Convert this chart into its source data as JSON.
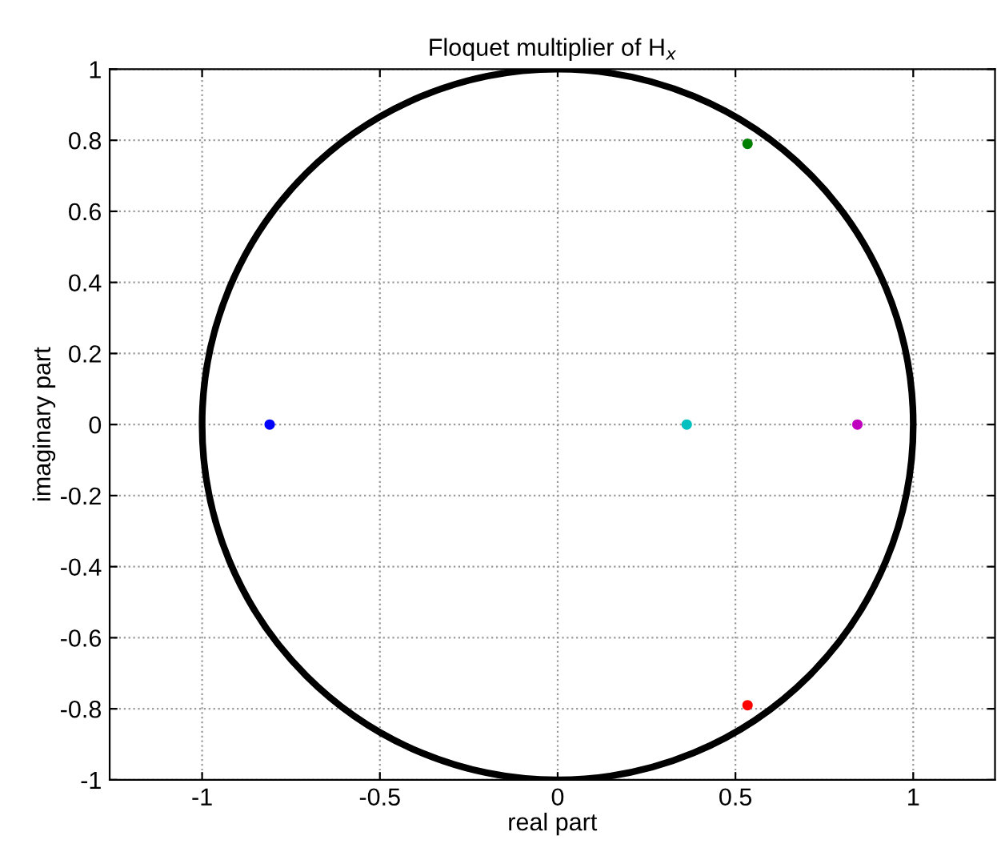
{
  "chart_data": {
    "type": "scatter",
    "title": "Floquet multiplier of H$_{x}$",
    "xlabel": "real part",
    "ylabel": "imaginary part",
    "xlim": [
      -1.26,
      1.23
    ],
    "ylim": [
      -1,
      1
    ],
    "xticks": [
      -1,
      -0.5,
      0,
      0.5,
      1
    ],
    "yticks": [
      -1,
      -0.8,
      -0.6,
      -0.4,
      -0.2,
      0,
      0.2,
      0.4,
      0.6,
      0.8,
      1
    ],
    "grid": true,
    "marker": "circle",
    "series": [
      {
        "x": [
          -0.81,
          0.363,
          0.843,
          0.534,
          0.534
        ],
        "values": [
          0,
          0,
          0,
          0.79,
          -0.79
        ],
        "colors": [
          "#0000ff",
          "#00bfbf",
          "#bf00bf",
          "#008000",
          "#ff0000"
        ]
      }
    ]
  }
}
